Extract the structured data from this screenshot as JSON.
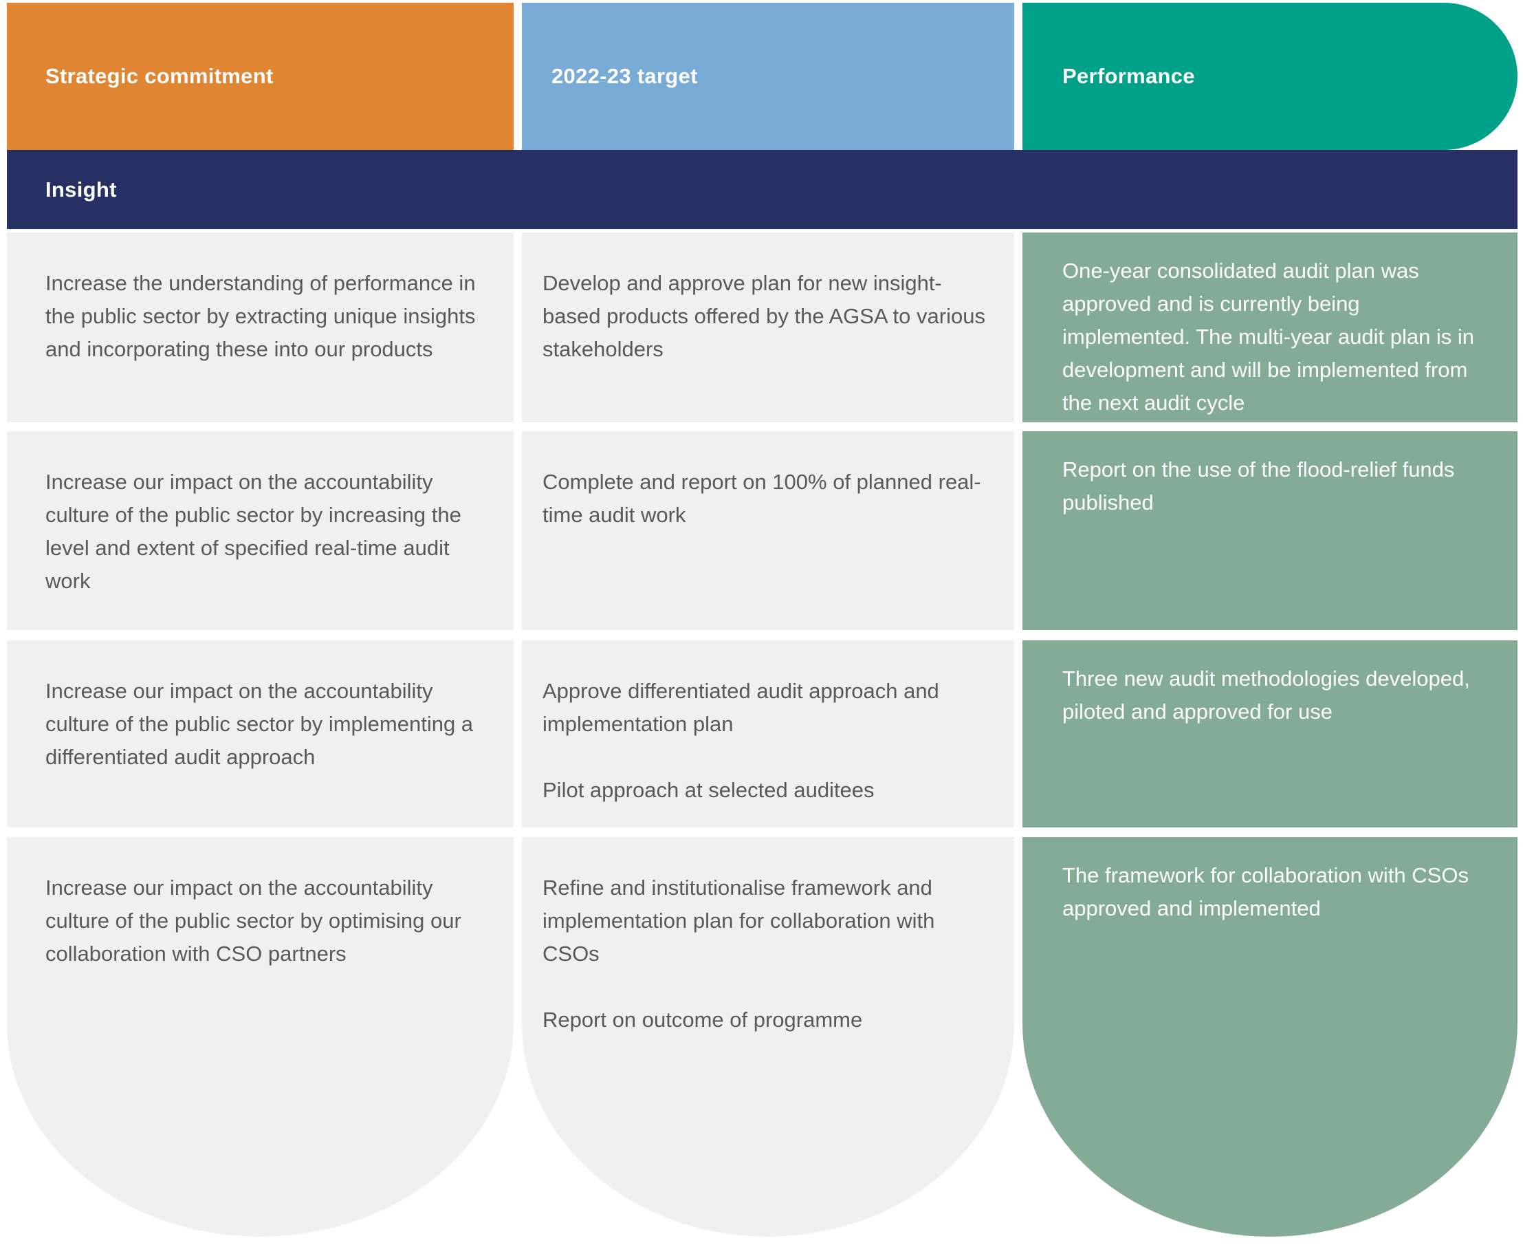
{
  "table": {
    "columns": [
      {
        "label": "Strategic commitment",
        "color": "#E08531"
      },
      {
        "label": "2022-23 target",
        "color": "#78ACD7"
      },
      {
        "label": "Performance",
        "color": "#00A189"
      }
    ],
    "section": {
      "label": "Insight",
      "color": "#263062"
    },
    "rows": [
      {
        "commitment": "Increase the understanding of performance in the public sector by extracting unique insights and incorporating these into our products",
        "target": [
          "Develop and approve plan for new insight-based products offered by the AGSA to various stakeholders"
        ],
        "performance": "One-year consolidated audit plan was approved and is currently being implemented. The multi-year audit plan is in development and will be implemented from the next audit cycle"
      },
      {
        "commitment": "Increase our impact on the accountability culture of the public sector by increasing the level and extent of specified real-time audit work",
        "target": [
          "Complete and report on 100% of planned real-time audit work"
        ],
        "performance": "Report on the use of the flood-relief funds published"
      },
      {
        "commitment": "Increase our impact on the accountability culture of the public sector by implementing a differentiated audit approach",
        "target": [
          "Approve differentiated audit approach and implementation plan",
          "Pilot approach at selected auditees"
        ],
        "performance": "Three new audit methodologies developed, piloted and approved for use"
      },
      {
        "commitment": "Increase our impact on the accountability culture of the public sector by optimising our collaboration with CSO partners",
        "target": [
          "Refine and institutionalise framework and implementation plan for collaboration with CSOs",
          "Report on outcome of programme"
        ],
        "performance": "The framework for collaboration with CSOs approved and implemented"
      }
    ],
    "colors": {
      "row_bg": "#F0F0F1",
      "performance_bg": "#84AB96",
      "body_text": "#595959",
      "header_text": "#FFFFFF"
    }
  }
}
